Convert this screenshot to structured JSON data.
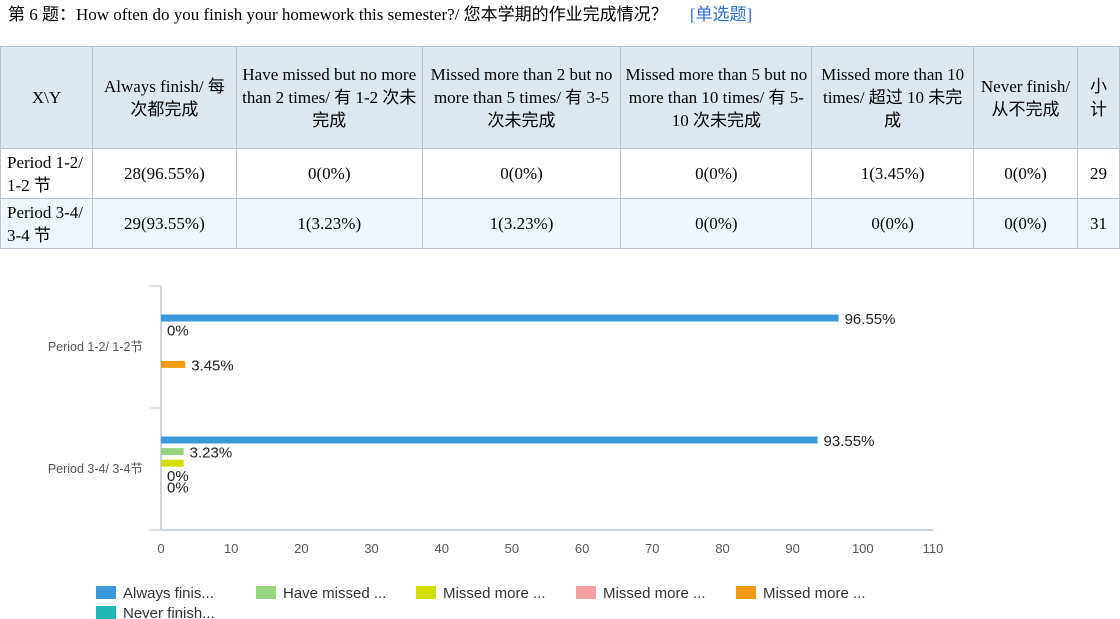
{
  "question": {
    "text": "第 6 题：How often do you finish your homework this semester?/ 您本学期的作业完成情况？",
    "type_label": "[单选题]"
  },
  "table": {
    "corner": "X\\Y",
    "columns": [
      "Always finish/ 每次都完成",
      "Have missed but no more than 2 times/ 有 1-2 次未完成",
      "Missed more than 2 but no more than 5 times/ 有 3-5 次未完成",
      "Missed more than 5 but no more than 10 times/ 有 5-10 次未完成",
      "Missed more than 10 times/ 超过 10 未完成",
      "Never finish/ 从不完成",
      "小计"
    ],
    "rows": [
      {
        "label": "Period 1-2/ 1-2 节",
        "cells": [
          "28(96.55%)",
          "0(0%)",
          "0(0%)",
          "0(0%)",
          "1(3.45%)",
          "0(0%)",
          "29"
        ]
      },
      {
        "label": "Period 3-4/ 3-4 节",
        "cells": [
          "29(93.55%)",
          "1(3.23%)",
          "1(3.23%)",
          "0(0%)",
          "0(0%)",
          "0(0%)",
          "31"
        ]
      }
    ]
  },
  "chart_data": {
    "type": "bar",
    "orientation": "horizontal",
    "categories": [
      "Period 1-2/ 1-2节",
      "Period 3-4/ 3-4节"
    ],
    "series": [
      {
        "name": "Always finis...",
        "color": "#3a9ad9",
        "values": [
          96.55,
          93.55
        ],
        "labels": [
          "96.55%",
          "93.55%"
        ]
      },
      {
        "name": "Have missed ...",
        "color": "#95d67e",
        "values": [
          0,
          3.23
        ],
        "labels": [
          "0%",
          "3.23%"
        ]
      },
      {
        "name": "Missed more ...",
        "color": "#d4dd00",
        "values": [
          0,
          3.23
        ],
        "labels": [
          "",
          ""
        ]
      },
      {
        "name": "Missed more ...",
        "color": "#f5a1a1",
        "values": [
          0,
          0
        ],
        "labels": [
          "",
          "0%"
        ]
      },
      {
        "name": "Missed more ...",
        "color": "#f39a12",
        "values": [
          3.45,
          0
        ],
        "labels": [
          "3.45%",
          "0%"
        ]
      },
      {
        "name": "Never finish...",
        "color": "#1fb5b5",
        "values": [
          0,
          0
        ],
        "labels": [
          "",
          ""
        ]
      }
    ],
    "xlim": [
      0,
      110
    ],
    "xticks": [
      0,
      10,
      20,
      30,
      40,
      50,
      60,
      70,
      80,
      90,
      100,
      110
    ],
    "legend_position": "bottom"
  }
}
